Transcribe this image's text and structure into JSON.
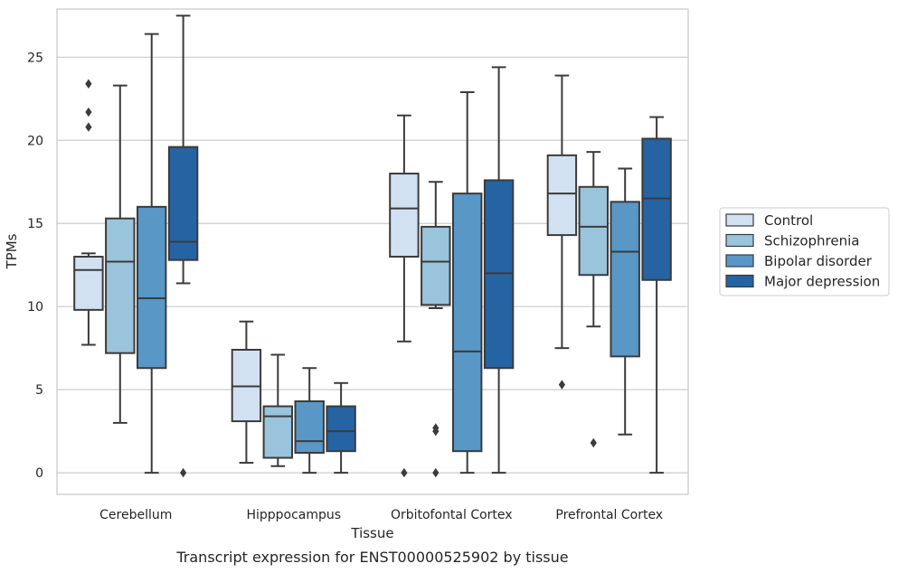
{
  "chart_data": {
    "type": "box",
    "title": "",
    "caption": "Transcript expression for ENST00000525902 by tissue",
    "xlabel": "Tissue",
    "ylabel": "TPMs",
    "ylim": [
      -1.3,
      27.9
    ],
    "yticks": [
      0,
      5,
      10,
      15,
      20,
      25
    ],
    "grid": "horizontal",
    "legend_position": "right",
    "categories": [
      "Cerebellum",
      "Hipppocampus",
      "Orbitofontal Cortex",
      "Prefrontal Cortex"
    ],
    "series": [
      {
        "name": "Control",
        "color": "#d1e1f1",
        "boxes": [
          {
            "min": 7.7,
            "q1": 9.8,
            "median": 12.2,
            "q3": 13.0,
            "max": 13.2,
            "outliers": [
              20.8,
              21.7,
              23.4
            ]
          },
          {
            "min": 0.6,
            "q1": 3.1,
            "median": 5.2,
            "q3": 7.4,
            "max": 9.1,
            "outliers": []
          },
          {
            "min": 7.9,
            "q1": 13.0,
            "median": 15.9,
            "q3": 18.0,
            "max": 21.5,
            "outliers": [
              0.0
            ]
          },
          {
            "min": 7.5,
            "q1": 14.3,
            "median": 16.8,
            "q3": 19.1,
            "max": 23.9,
            "outliers": [
              5.3
            ]
          }
        ]
      },
      {
        "name": "Schizophrenia",
        "color": "#9ac3dc",
        "boxes": [
          {
            "min": 3.0,
            "q1": 7.2,
            "median": 12.7,
            "q3": 15.3,
            "max": 23.3,
            "outliers": []
          },
          {
            "min": 0.4,
            "q1": 0.9,
            "median": 3.4,
            "q3": 4.0,
            "max": 7.1,
            "outliers": []
          },
          {
            "min": 9.9,
            "q1": 10.1,
            "median": 12.7,
            "q3": 14.8,
            "max": 17.5,
            "outliers": [
              0.0,
              2.5,
              2.7
            ]
          },
          {
            "min": 8.8,
            "q1": 11.9,
            "median": 14.8,
            "q3": 17.2,
            "max": 19.3,
            "outliers": [
              1.8
            ]
          }
        ]
      },
      {
        "name": "Bipolar disorder",
        "color": "#5897c6",
        "boxes": [
          {
            "min": 0.0,
            "q1": 6.3,
            "median": 10.5,
            "q3": 16.0,
            "max": 26.4,
            "outliers": []
          },
          {
            "min": 0.0,
            "q1": 1.2,
            "median": 1.9,
            "q3": 4.3,
            "max": 6.3,
            "outliers": []
          },
          {
            "min": 0.0,
            "q1": 1.3,
            "median": 7.3,
            "q3": 16.8,
            "max": 22.9,
            "outliers": []
          },
          {
            "min": 2.3,
            "q1": 7.0,
            "median": 13.3,
            "q3": 16.3,
            "max": 18.3,
            "outliers": []
          }
        ]
      },
      {
        "name": "Major depression",
        "color": "#2563a3",
        "boxes": [
          {
            "min": 11.4,
            "q1": 12.8,
            "median": 13.9,
            "q3": 19.6,
            "max": 27.5,
            "outliers": [
              0.0
            ]
          },
          {
            "min": 0.0,
            "q1": 1.3,
            "median": 2.5,
            "q3": 4.0,
            "max": 5.4,
            "outliers": []
          },
          {
            "min": 0.0,
            "q1": 6.3,
            "median": 12.0,
            "q3": 17.6,
            "max": 24.4,
            "outliers": []
          },
          {
            "min": 0.0,
            "q1": 11.6,
            "median": 16.5,
            "q3": 20.1,
            "max": 21.4,
            "outliers": []
          }
        ]
      }
    ]
  }
}
